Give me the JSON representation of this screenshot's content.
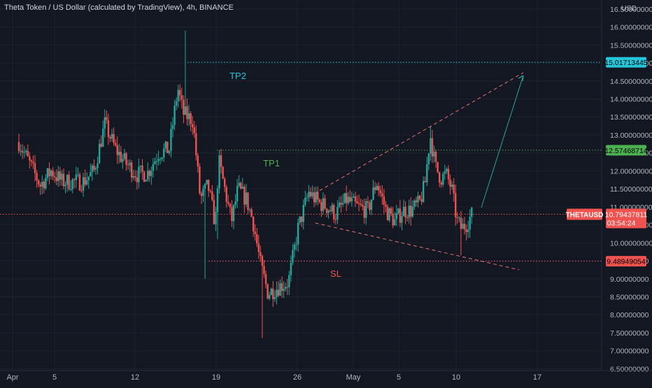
{
  "chart_data": {
    "type": "candlestick",
    "title": "Theta Token / US Dollar (calculated by TradingView), 4h, BINANCE",
    "currency": "USD",
    "symbol": "THETAUSD",
    "y_ticks": [
      "16.50000000",
      "16.00000000",
      "15.50000000",
      "15.00000000",
      "14.50000000",
      "14.00000000",
      "13.50000000",
      "13.00000000",
      "12.50000000",
      "12.00000000",
      "11.50000000",
      "11.00000000",
      "10.50000000",
      "10.00000000",
      "9.50000000",
      "9.00000000",
      "8.50000000",
      "8.00000000",
      "7.50000000",
      "7.00000000",
      "6.50000000"
    ],
    "x_ticks": [
      "Apr",
      "5",
      "12",
      "19",
      "26",
      "May",
      "5",
      "10",
      "17"
    ],
    "ylim": [
      6.45,
      16.75
    ],
    "levels": [
      {
        "name": "TP2",
        "value": "15.01713445",
        "color": "#26c6da"
      },
      {
        "name": "TP1",
        "value": "12.57468714",
        "color": "#4caf50"
      },
      {
        "name": "SL",
        "value": "9.48949054",
        "color": "#ef5350"
      }
    ],
    "last_price": {
      "symbol": "THETAUSD",
      "value": "10.79437811",
      "countdown": "03:54:24",
      "color": "#ef5350"
    },
    "colors": {
      "up": "#26a69a",
      "down": "#ef5350",
      "background": "#131722",
      "grid": "#1e222d",
      "projection": "#26a69a"
    },
    "pattern": "falling wedge with upward projection arrow",
    "price_path": [
      {
        "day": 0,
        "close": 12.8
      },
      {
        "day": 1,
        "close": 12.2
      },
      {
        "day": 2,
        "close": 11.6
      },
      {
        "day": 3,
        "close": 12.0
      },
      {
        "day": 4,
        "close": 11.7
      },
      {
        "day": 5,
        "close": 11.7
      },
      {
        "day": 6,
        "close": 11.7
      },
      {
        "day": 7,
        "close": 12.0
      },
      {
        "day": 8,
        "close": 13.3
      },
      {
        "day": 9,
        "close": 12.6
      },
      {
        "day": 10,
        "close": 12.2
      },
      {
        "day": 11,
        "close": 11.9
      },
      {
        "day": 12,
        "close": 11.95
      },
      {
        "day": 13,
        "close": 12.5
      },
      {
        "day": 14,
        "close": 12.6
      },
      {
        "day": 14.8,
        "close": 14.3
      },
      {
        "day": 15.3,
        "close": 13.6
      },
      {
        "day": 16.2,
        "close": 13.4
      },
      {
        "day": 16.9,
        "close": 11.2
      },
      {
        "day": 17.6,
        "close": 11.6
      },
      {
        "day": 18.3,
        "close": 10.5
      },
      {
        "day": 18.6,
        "close": 12.3
      },
      {
        "day": 19.8,
        "close": 10.6
      },
      {
        "day": 20.4,
        "close": 11.5
      },
      {
        "day": 21.2,
        "close": 11.2
      },
      {
        "day": 21.8,
        "close": 10.6
      },
      {
        "day": 22.5,
        "close": 9.4
      },
      {
        "day": 23.2,
        "close": 8.6
      },
      {
        "day": 24.3,
        "close": 8.8
      },
      {
        "day": 25.1,
        "close": 8.9
      },
      {
        "day": 26,
        "close": 10.4
      },
      {
        "day": 27,
        "close": 11.4
      },
      {
        "day": 28,
        "close": 11.1
      },
      {
        "day": 28.7,
        "close": 11.0
      },
      {
        "day": 29.5,
        "close": 10.8
      },
      {
        "day": 30.5,
        "close": 11.2
      },
      {
        "day": 31.5,
        "close": 11.0
      },
      {
        "day": 32.5,
        "close": 10.9
      },
      {
        "day": 33.3,
        "close": 11.7
      },
      {
        "day": 34.2,
        "close": 10.9
      },
      {
        "day": 35,
        "close": 10.6
      },
      {
        "day": 35.8,
        "close": 10.9
      },
      {
        "day": 36.5,
        "close": 10.9
      },
      {
        "day": 37.3,
        "close": 11.1
      },
      {
        "day": 37.8,
        "close": 11.6
      },
      {
        "day": 38.3,
        "close": 13.0
      },
      {
        "day": 38.8,
        "close": 12.1
      },
      {
        "day": 39.3,
        "close": 11.8
      },
      {
        "day": 39.8,
        "close": 11.9
      },
      {
        "day": 40.3,
        "close": 11.5
      },
      {
        "day": 40.8,
        "close": 10.6
      },
      {
        "day": 41.2,
        "close": 10.4
      },
      {
        "day": 41.6,
        "close": 10.5
      },
      {
        "day": 42.2,
        "close": 10.79
      }
    ]
  }
}
